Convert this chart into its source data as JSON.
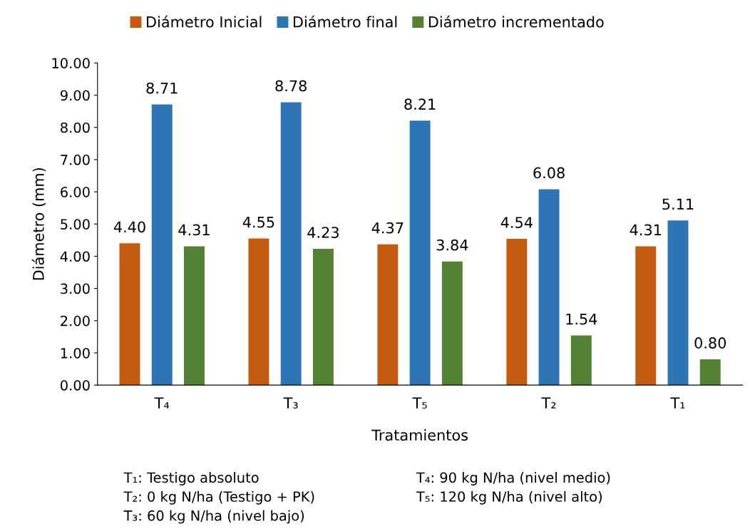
{
  "chart_data": {
    "type": "bar",
    "xlabel": "Tratamientos",
    "ylabel": "Diámetro (mm)",
    "categories": [
      "T₄",
      "T₃",
      "T₅",
      "T₂",
      "T₁"
    ],
    "series": [
      {
        "name": "Diámetro Inicial",
        "color": "#c55a11",
        "values": [
          4.4,
          4.55,
          4.37,
          4.54,
          4.31
        ],
        "value_labels": [
          "4.40",
          "4.55",
          "4.37",
          "4.54",
          "4.31"
        ]
      },
      {
        "name": "Diámetro final",
        "color": "#2e75b6",
        "values": [
          8.71,
          8.78,
          8.21,
          6.08,
          5.11
        ],
        "value_labels": [
          "8.71",
          "8.78",
          "8.21",
          "6.08",
          "5.11"
        ]
      },
      {
        "name": "Diámetro incrementado",
        "color": "#548235",
        "values": [
          4.31,
          4.23,
          3.84,
          1.54,
          0.8
        ],
        "value_labels": [
          "4.31",
          "4.23",
          "3.84",
          "1.54",
          "0.80"
        ]
      }
    ],
    "ylim": [
      0,
      10
    ],
    "yticks": [
      {
        "value": 0,
        "label": "0.00"
      },
      {
        "value": 1,
        "label": "1.00"
      },
      {
        "value": 2,
        "label": "2.00"
      },
      {
        "value": 3,
        "label": "3.00"
      },
      {
        "value": 4,
        "label": "4.00"
      },
      {
        "value": 5,
        "label": "5.00"
      },
      {
        "value": 6,
        "label": "6.00"
      },
      {
        "value": 7,
        "label": "7.00"
      },
      {
        "value": 8,
        "label": "8.00"
      },
      {
        "value": 9,
        "label": "9.00"
      },
      {
        "value": 10,
        "label": "10.00"
      }
    ],
    "grid": false,
    "legend": "top",
    "annotations": [
      "T₁: Testigo absoluto",
      "T₂: 0 kg N/ha (Testigo + PK)",
      "T₃: 60 kg N/ha (nivel bajo)",
      "T₄: 90 kg N/ha (nivel medio)",
      "T₅: 120 kg N/ha (nivel alto)"
    ]
  }
}
